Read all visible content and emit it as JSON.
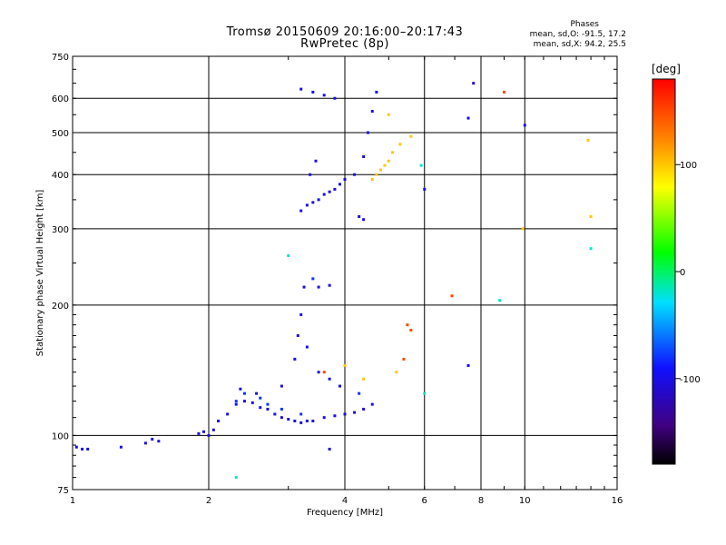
{
  "header": {
    "title_line1": "Tromsø 20150609 20:16:00–20:17:43",
    "title_line2": "RwPretec (8p)",
    "stats_head": "Phases",
    "stats_o": "mean, sd,O: -91.5, 17.2",
    "stats_x": "mean, sd,X:  94.2, 25.5"
  },
  "chart_data": {
    "type": "scatter",
    "xlabel": "Frequency [MHz]",
    "ylabel": "Stationary phase Virtual Height [km]",
    "xscale": "log",
    "yscale": "log",
    "xlim": [
      1,
      16
    ],
    "ylim": [
      75,
      750
    ],
    "xticks": [
      1,
      2,
      4,
      6,
      8,
      10,
      16
    ],
    "yticks": [
      75,
      100,
      200,
      300,
      400,
      500,
      600,
      750
    ],
    "grid": true,
    "colorbar": {
      "label": "[deg]",
      "range": [
        -180,
        180
      ],
      "ticks": [
        100,
        0,
        -100
      ]
    },
    "series": [
      {
        "phase_deg": -100,
        "points": [
          [
            1.02,
            94
          ],
          [
            1.05,
            93
          ],
          [
            1.08,
            93
          ],
          [
            1.28,
            94
          ],
          [
            1.45,
            96
          ],
          [
            1.5,
            98
          ],
          [
            1.55,
            97
          ],
          [
            1.9,
            101
          ],
          [
            1.95,
            102
          ],
          [
            2.0,
            100
          ],
          [
            2.05,
            103
          ],
          [
            2.1,
            108
          ],
          [
            2.2,
            112
          ],
          [
            2.3,
            118
          ],
          [
            2.4,
            120
          ],
          [
            2.5,
            119
          ],
          [
            2.6,
            116
          ],
          [
            2.7,
            115
          ],
          [
            2.8,
            112
          ],
          [
            2.9,
            110
          ],
          [
            3.0,
            109
          ],
          [
            3.1,
            108
          ],
          [
            3.2,
            107
          ],
          [
            3.3,
            108
          ],
          [
            3.4,
            108
          ],
          [
            3.6,
            110
          ],
          [
            3.8,
            111
          ],
          [
            4.0,
            112
          ],
          [
            4.2,
            113
          ],
          [
            4.4,
            115
          ],
          [
            4.6,
            118
          ],
          [
            2.35,
            128
          ],
          [
            2.55,
            125
          ],
          [
            2.9,
            130
          ],
          [
            3.1,
            150
          ],
          [
            3.15,
            170
          ],
          [
            3.2,
            190
          ],
          [
            3.25,
            220
          ],
          [
            3.3,
            160
          ],
          [
            3.5,
            140
          ],
          [
            3.7,
            135
          ],
          [
            3.9,
            130
          ],
          [
            3.5,
            220
          ],
          [
            3.7,
            222
          ],
          [
            3.2,
            330
          ],
          [
            3.3,
            340
          ],
          [
            3.4,
            345
          ],
          [
            3.5,
            350
          ],
          [
            3.6,
            360
          ],
          [
            3.7,
            365
          ],
          [
            3.8,
            370
          ],
          [
            3.9,
            380
          ],
          [
            4.0,
            390
          ],
          [
            4.2,
            400
          ],
          [
            4.4,
            440
          ],
          [
            4.5,
            500
          ],
          [
            4.6,
            560
          ],
          [
            4.7,
            620
          ],
          [
            3.2,
            630
          ],
          [
            3.4,
            620
          ],
          [
            3.6,
            610
          ],
          [
            3.8,
            600
          ],
          [
            4.3,
            320
          ],
          [
            4.4,
            315
          ],
          [
            3.35,
            400
          ],
          [
            3.45,
            430
          ],
          [
            6.0,
            370
          ],
          [
            7.7,
            650
          ],
          [
            7.5,
            540
          ],
          [
            10.0,
            520
          ],
          [
            7.5,
            145
          ],
          [
            3.7,
            93
          ]
        ]
      },
      {
        "phase_deg": -80,
        "points": [
          [
            2.3,
            120
          ],
          [
            2.4,
            125
          ],
          [
            2.6,
            122
          ],
          [
            2.7,
            118
          ],
          [
            2.9,
            115
          ],
          [
            3.2,
            112
          ],
          [
            3.4,
            230
          ],
          [
            4.3,
            125
          ]
        ]
      },
      {
        "phase_deg": 100,
        "points": [
          [
            4.6,
            390
          ],
          [
            4.7,
            400
          ],
          [
            4.8,
            410
          ],
          [
            4.9,
            420
          ],
          [
            5.0,
            430
          ],
          [
            5.1,
            450
          ],
          [
            5.3,
            470
          ],
          [
            5.6,
            490
          ],
          [
            4.4,
            135
          ],
          [
            4.0,
            145
          ],
          [
            5.2,
            140
          ],
          [
            5.0,
            550
          ],
          [
            9.9,
            300
          ],
          [
            14.0,
            320
          ],
          [
            13.8,
            480
          ]
        ]
      },
      {
        "phase_deg": 150,
        "points": [
          [
            5.5,
            180
          ],
          [
            5.6,
            175
          ],
          [
            5.4,
            150
          ],
          [
            6.9,
            210
          ],
          [
            9.0,
            620
          ],
          [
            3.6,
            140
          ]
        ]
      },
      {
        "phase_deg": -20,
        "points": [
          [
            2.3,
            80
          ],
          [
            3.0,
            260
          ],
          [
            5.9,
            420
          ],
          [
            6.0,
            125
          ],
          [
            14.0,
            270
          ],
          [
            8.8,
            205
          ]
        ]
      }
    ]
  }
}
